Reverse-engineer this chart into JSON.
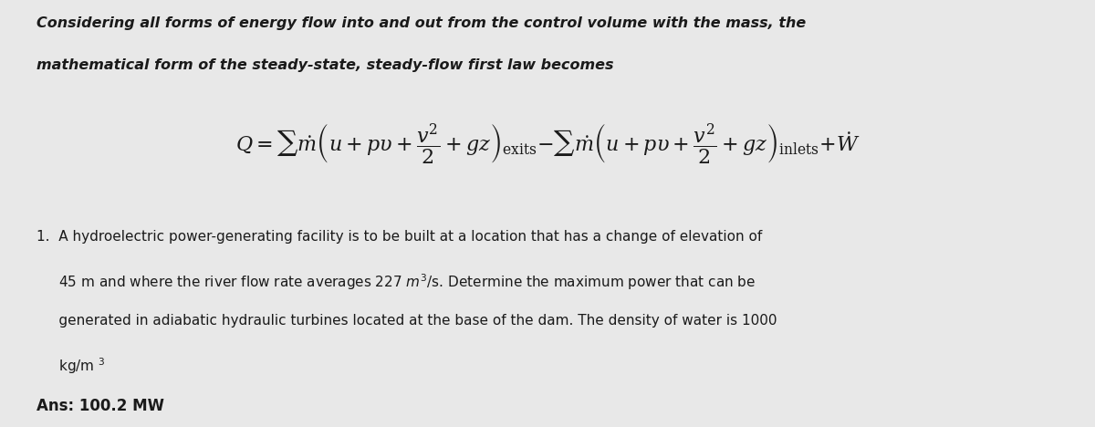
{
  "bg_color": "#e8e8e8",
  "text_color": "#1a1a1a",
  "title_line1": "Considering all forms of energy flow into and out from the control volume with the mass, the",
  "title_line2": "mathematical form of the steady-state, steady-flow first law becomes",
  "equation": "Q = $\\sum\\dot{m}\\left(u+p\\upsilon+\\dfrac{v^2}{2}+gz\\right)_{\\mathrm{exits}}$ $-$ $\\sum\\dot{m}\\left(u+p\\upsilon+\\dfrac{v^2}{2}+gz\\right)_{\\mathrm{inlets}}$ $+$ $\\dot{W}$",
  "problem_text_lines": [
    "1.  A hydroelectric power-generating facility is to be built at a location that has a change of elevation of",
    "     45 m and where the river flow rate averages 227 $\\mathit{m}^3$/s. Determine the maximum power that can be",
    "     generated in adiabatic hydraulic turbines located at the base of the dam. The density of water is 1000",
    "     kg/m $^3$"
  ],
  "answer_text": "Ans: 100.2 MW",
  "figsize": [
    12.0,
    4.68
  ],
  "dpi": 100
}
